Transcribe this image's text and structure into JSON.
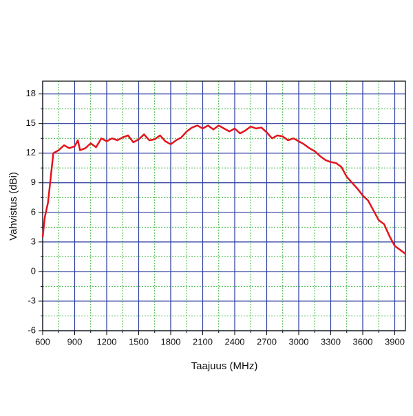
{
  "chart_data": {
    "type": "line",
    "xlabel": "Taajuus (MHz)",
    "ylabel": "Vahvistus (dBi)",
    "x": [
      600,
      620,
      650,
      680,
      700,
      750,
      800,
      850,
      900,
      930,
      950,
      1000,
      1050,
      1100,
      1150,
      1200,
      1250,
      1300,
      1350,
      1400,
      1450,
      1500,
      1550,
      1600,
      1650,
      1700,
      1750,
      1800,
      1850,
      1900,
      1950,
      2000,
      2050,
      2100,
      2150,
      2200,
      2250,
      2300,
      2350,
      2400,
      2450,
      2500,
      2550,
      2600,
      2650,
      2700,
      2750,
      2800,
      2850,
      2900,
      2950,
      3000,
      3050,
      3100,
      3150,
      3200,
      3250,
      3300,
      3350,
      3400,
      3450,
      3500,
      3550,
      3600,
      3650,
      3700,
      3750,
      3800,
      3850,
      3900,
      3950,
      4000
    ],
    "series": [
      {
        "color": "#e3141c",
        "values": [
          3.5,
          5.5,
          7,
          10,
          12,
          12.3,
          12.8,
          12.5,
          12.7,
          13.3,
          12.3,
          12.5,
          13,
          12.6,
          13.5,
          13.2,
          13.5,
          13.3,
          13.6,
          13.8,
          13.1,
          13.4,
          13.9,
          13.3,
          13.4,
          13.8,
          13.2,
          12.9,
          13.3,
          13.6,
          14.2,
          14.6,
          14.8,
          14.5,
          14.8,
          14.4,
          14.8,
          14.5,
          14.2,
          14.5,
          14,
          14.3,
          14.7,
          14.5,
          14.6,
          14.1,
          13.5,
          13.8,
          13.7,
          13.3,
          13.5,
          13.2,
          12.9,
          12.5,
          12.2,
          11.7,
          11.3,
          11.1,
          11,
          10.6,
          9.6,
          9,
          8.4,
          7.7,
          7.2,
          6.2,
          5.2,
          4.8,
          3.6,
          2.6,
          2.2,
          1.8
        ]
      }
    ],
    "xlim": [
      600,
      4000
    ],
    "ylim": [
      -6,
      19.3
    ],
    "xticks": [
      600,
      900,
      1200,
      1500,
      1800,
      2100,
      2400,
      2700,
      3000,
      3300,
      3600,
      3900
    ],
    "yticks": [
      -6,
      -3,
      0,
      3,
      6,
      9,
      12,
      15,
      18
    ],
    "xminor": [
      750,
      1050,
      1350,
      1650,
      1950,
      2250,
      2550,
      2850,
      3150,
      3450,
      3750
    ],
    "yminor": [
      -4.5,
      -1.5,
      1.5,
      4.5,
      7.5,
      10.5,
      13.5,
      16.5
    ],
    "grid": true,
    "grid_color": "#2a3a9e",
    "minor_grid_color": "#3cb43c"
  }
}
